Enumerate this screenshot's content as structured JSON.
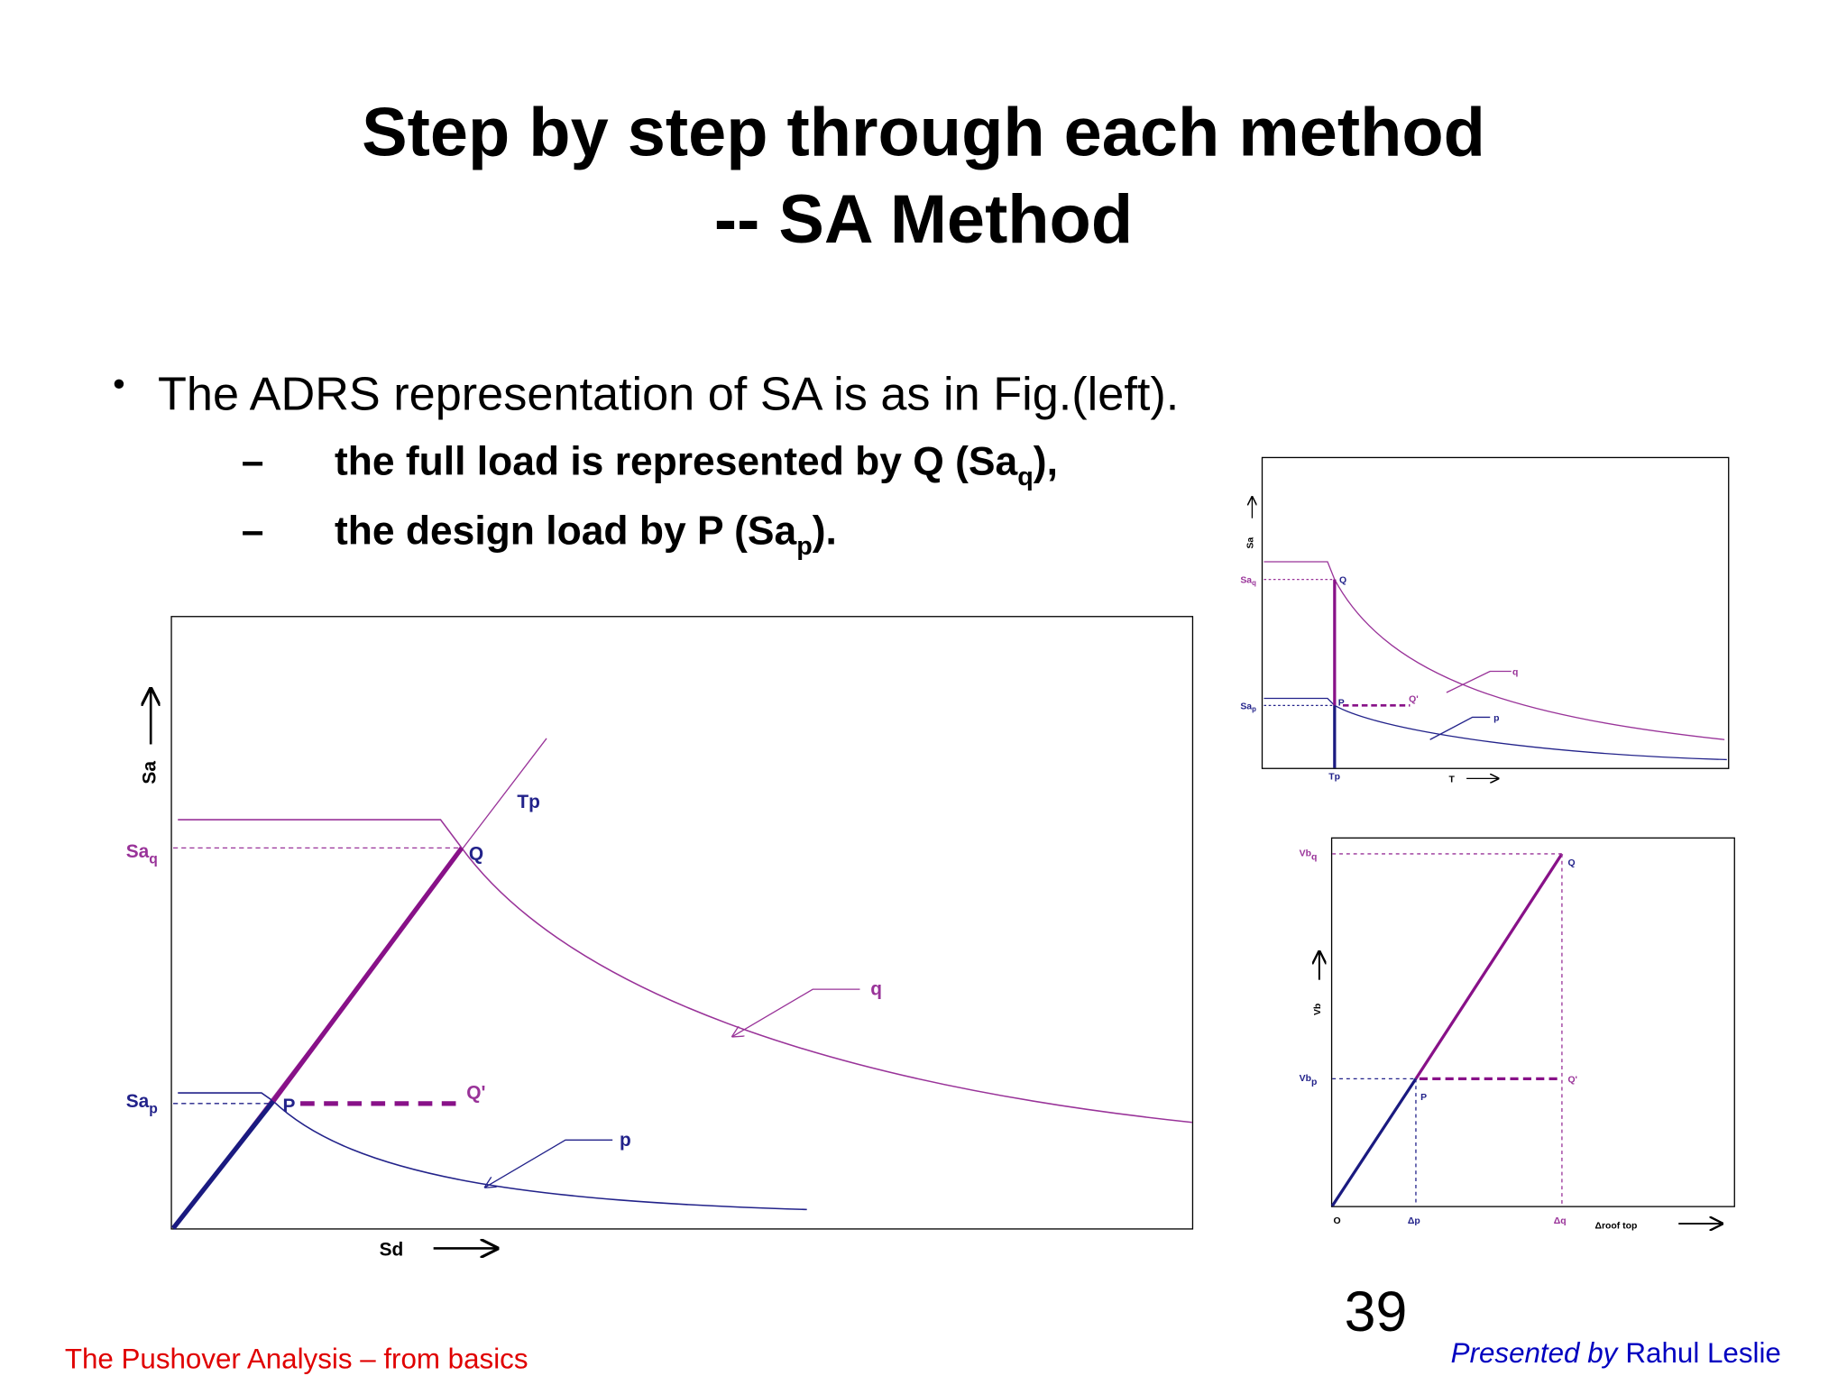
{
  "title": [
    "Step by step through each method",
    "-- SA Method"
  ],
  "bullet": {
    "text": "The ADRS representation of SA is as in Fig.(left).",
    "subitems": [
      {
        "marker": "–",
        "text": "the full load is represented by Q (Sa",
        "sub": "q",
        "tail": "),"
      },
      {
        "marker": "–",
        "text": "the design load by P (Sa",
        "sub": "p",
        "tail": ")."
      }
    ]
  },
  "figures": {
    "left": {
      "y_axis": "Sa",
      "x_axis": "Sd",
      "saq": {
        "main": "Sa",
        "sub": "q"
      },
      "sap": {
        "main": "Sa",
        "sub": "p"
      },
      "q_point": "Q",
      "p_point": "P",
      "q_prime": "Q'",
      "tp": "Tp",
      "q_curve": "q",
      "p_curve": "p"
    },
    "top_right": {
      "y_axis": "Sa",
      "x_axis": "T",
      "saq": {
        "main": "Sa",
        "sub": "q"
      },
      "sap": {
        "main": "Sa",
        "sub": "p"
      },
      "q_point": "Q",
      "p_point": "P",
      "q_prime": "Q'",
      "tp": "Tp",
      "q_curve": "q",
      "p_curve": "p"
    },
    "bottom_right": {
      "y_axis": "Vb",
      "x_axis": "Δroof top",
      "vbq": {
        "main": "Vb",
        "sub": "q"
      },
      "vbp": {
        "main": "Vb",
        "sub": "p"
      },
      "q_point": "Q",
      "p_point": "P",
      "q_prime": "Q'",
      "origin": "O",
      "dp": "Δp",
      "dq": "Δq"
    }
  },
  "page_number": "39",
  "footer": {
    "left": "The Pushover Analysis – from basics",
    "presented": "Presented by",
    "author": "Rahul Leslie"
  }
}
